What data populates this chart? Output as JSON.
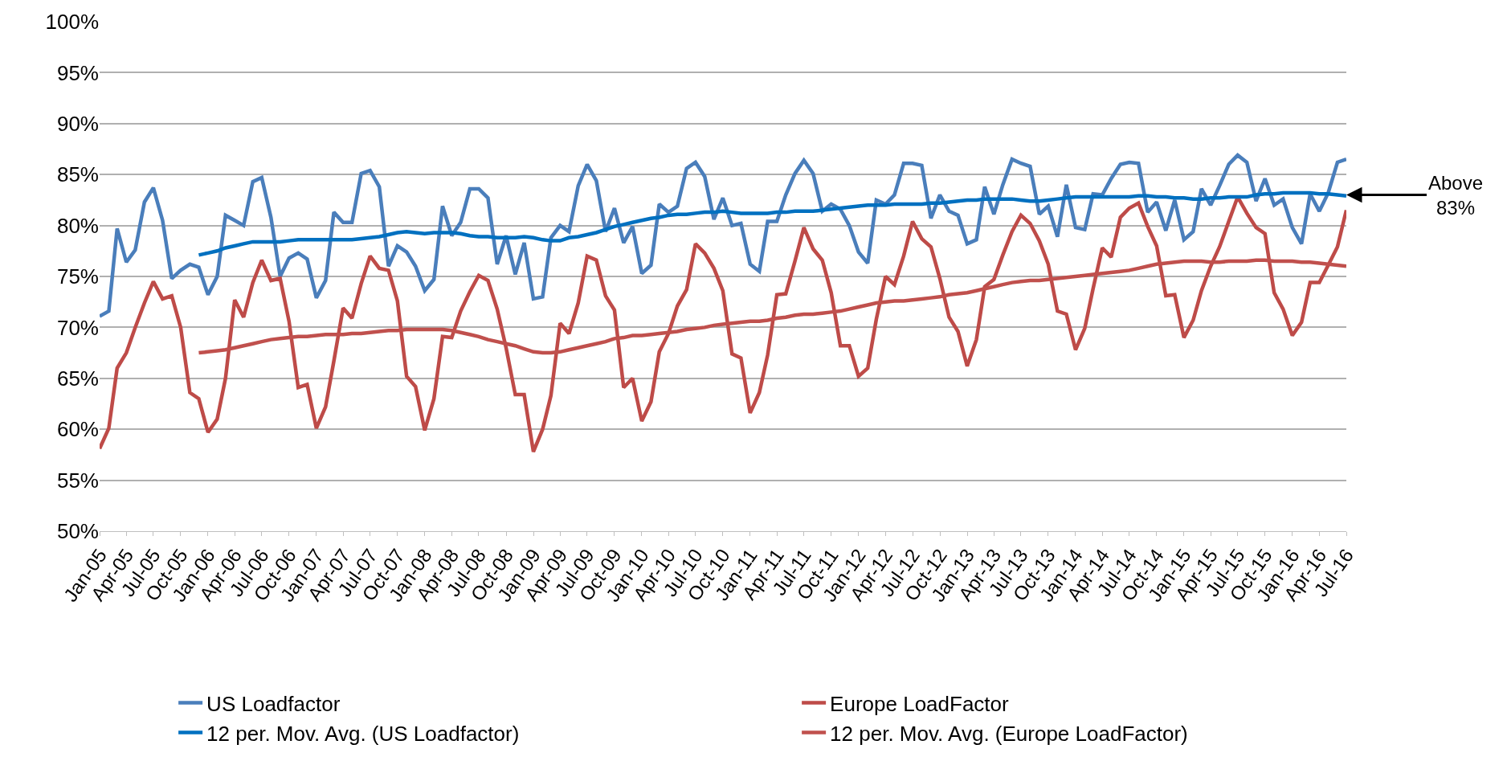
{
  "chart_data": {
    "type": "line",
    "x": [
      "2005-01",
      "2005-02",
      "2005-03",
      "2005-04",
      "2005-05",
      "2005-06",
      "2005-07",
      "2005-08",
      "2005-09",
      "2005-10",
      "2005-11",
      "2005-12",
      "2006-01",
      "2006-02",
      "2006-03",
      "2006-04",
      "2006-05",
      "2006-06",
      "2006-07",
      "2006-08",
      "2006-09",
      "2006-10",
      "2006-11",
      "2006-12",
      "2007-01",
      "2007-02",
      "2007-03",
      "2007-04",
      "2007-05",
      "2007-06",
      "2007-07",
      "2007-08",
      "2007-09",
      "2007-10",
      "2007-11",
      "2007-12",
      "2008-01",
      "2008-02",
      "2008-03",
      "2008-04",
      "2008-05",
      "2008-06",
      "2008-07",
      "2008-08",
      "2008-09",
      "2008-10",
      "2008-11",
      "2008-12",
      "2009-01",
      "2009-02",
      "2009-03",
      "2009-04",
      "2009-05",
      "2009-06",
      "2009-07",
      "2009-08",
      "2009-09",
      "2009-10",
      "2009-11",
      "2009-12",
      "2010-01",
      "2010-02",
      "2010-03",
      "2010-04",
      "2010-05",
      "2010-06",
      "2010-07",
      "2010-08",
      "2010-09",
      "2010-10",
      "2010-11",
      "2010-12",
      "2011-01",
      "2011-02",
      "2011-03",
      "2011-04",
      "2011-05",
      "2011-06",
      "2011-07",
      "2011-08",
      "2011-09",
      "2011-10",
      "2011-11",
      "2011-12",
      "2012-01",
      "2012-02",
      "2012-03",
      "2012-04",
      "2012-05",
      "2012-06",
      "2012-07",
      "2012-08",
      "2012-09",
      "2012-10",
      "2012-11",
      "2012-12",
      "2013-01",
      "2013-02",
      "2013-03",
      "2013-04",
      "2013-05",
      "2013-06",
      "2013-07",
      "2013-08",
      "2013-09",
      "2013-10",
      "2013-11",
      "2013-12",
      "2014-01",
      "2014-02",
      "2014-03",
      "2014-04",
      "2014-05",
      "2014-06",
      "2014-07",
      "2014-08",
      "2014-09",
      "2014-10",
      "2014-11",
      "2014-12",
      "2015-01",
      "2015-02",
      "2015-03",
      "2015-04",
      "2015-05",
      "2015-06",
      "2015-07",
      "2015-08",
      "2015-09",
      "2015-10",
      "2015-11",
      "2015-12",
      "2016-01",
      "2016-02",
      "2016-03",
      "2016-04",
      "2016-05",
      "2016-06",
      "2016-07"
    ],
    "series": [
      {
        "name": "US Loadfactor",
        "color": "#4a7ebb",
        "values": [
          71.1,
          71.6,
          79.7,
          76.4,
          77.6,
          82.3,
          83.7,
          80.5,
          74.8,
          75.6,
          76.2,
          75.9,
          73.2,
          75.0,
          81.0,
          80.5,
          80.0,
          84.3,
          84.7,
          80.8,
          75.0,
          76.8,
          77.3,
          76.7,
          72.9,
          74.6,
          81.3,
          80.3,
          80.3,
          85.1,
          85.4,
          83.8,
          76.0,
          78.0,
          77.4,
          76.0,
          73.6,
          74.7,
          81.9,
          79.0,
          80.3,
          83.6,
          83.6,
          82.7,
          76.2,
          79.0,
          75.2,
          78.3,
          72.8,
          73.0,
          78.8,
          80.0,
          79.4,
          83.9,
          86.0,
          84.4,
          79.4,
          81.7,
          78.3,
          79.9,
          75.3,
          76.1,
          82.1,
          81.3,
          81.9,
          85.6,
          86.2,
          84.8,
          80.6,
          82.7,
          80.0,
          80.2,
          76.2,
          75.5,
          80.4,
          80.4,
          83.0,
          85.1,
          86.4,
          85.1,
          81.4,
          82.1,
          81.6,
          80.0,
          77.4,
          76.3,
          82.5,
          82.1,
          83.0,
          86.1,
          86.1,
          85.9,
          80.7,
          83.0,
          81.4,
          81.0,
          78.2,
          78.6,
          83.8,
          81.1,
          84.0,
          86.5,
          86.1,
          85.8,
          81.1,
          81.9,
          78.9,
          84.0,
          79.8,
          79.6,
          83.1,
          83.0,
          84.6,
          86.0,
          86.2,
          86.1,
          81.3,
          82.3,
          79.5,
          82.5,
          78.6,
          79.4,
          83.6,
          82.0,
          83.9,
          86.0,
          86.9,
          86.2,
          82.4,
          84.6,
          82.0,
          82.6,
          79.8,
          78.2,
          83.1,
          81.4,
          83.2,
          86.2,
          86.5
        ]
      },
      {
        "name": "Europe LoadFactor",
        "color": "#be4b48",
        "values": [
          58.1,
          60.1,
          66.0,
          67.5,
          70.0,
          72.4,
          74.5,
          72.8,
          73.1,
          70.0,
          63.6,
          63.0,
          59.7,
          61.0,
          65.0,
          72.7,
          71.0,
          74.4,
          76.6,
          74.6,
          74.8,
          70.6,
          64.1,
          64.4,
          60.1,
          62.2,
          66.7,
          71.9,
          70.9,
          74.3,
          77.0,
          75.8,
          75.6,
          72.6,
          65.2,
          64.2,
          59.9,
          63.0,
          69.1,
          69.0,
          71.6,
          73.5,
          75.1,
          74.6,
          71.8,
          68.0,
          63.4,
          63.4,
          57.8,
          60.0,
          63.3,
          70.4,
          69.4,
          72.4,
          77.0,
          76.6,
          73.1,
          71.7,
          64.1,
          65.0,
          60.8,
          62.7,
          67.6,
          69.4,
          72.1,
          73.7,
          78.2,
          77.3,
          75.8,
          73.6,
          67.4,
          67.0,
          61.6,
          63.6,
          67.3,
          73.2,
          73.3,
          76.5,
          79.8,
          77.7,
          76.6,
          73.4,
          68.2,
          68.2,
          65.2,
          66.0,
          70.8,
          75.0,
          74.2,
          77.0,
          80.4,
          78.7,
          77.9,
          74.8,
          71.0,
          69.6,
          66.2,
          68.8,
          74.0,
          74.7,
          77.1,
          79.4,
          81.0,
          80.2,
          78.5,
          76.2,
          71.6,
          71.3,
          67.8,
          69.9,
          73.8,
          77.8,
          76.9,
          80.8,
          81.7,
          82.2,
          79.9,
          78.0,
          73.1,
          73.2,
          69.0,
          70.7,
          73.6,
          76.0,
          77.9,
          80.4,
          82.8,
          81.2,
          79.8,
          79.2,
          73.4,
          71.8,
          69.2,
          70.5,
          74.4,
          74.4,
          76.1,
          77.9,
          81.5
        ]
      },
      {
        "name": "12 per. Mov. Avg. (US Loadfactor)",
        "color": "#0070c0",
        "values": [
          null,
          null,
          null,
          null,
          null,
          null,
          null,
          null,
          null,
          null,
          null,
          77.1,
          77.3,
          77.5,
          77.8,
          78.0,
          78.2,
          78.4,
          78.4,
          78.4,
          78.4,
          78.5,
          78.6,
          78.6,
          78.6,
          78.6,
          78.6,
          78.6,
          78.6,
          78.7,
          78.8,
          78.9,
          79.1,
          79.3,
          79.4,
          79.3,
          79.2,
          79.3,
          79.3,
          79.3,
          79.2,
          79.0,
          78.9,
          78.9,
          78.8,
          78.8,
          78.8,
          78.9,
          78.8,
          78.6,
          78.5,
          78.5,
          78.8,
          78.9,
          79.1,
          79.3,
          79.6,
          79.9,
          80.1,
          80.3,
          80.5,
          80.7,
          80.8,
          81.0,
          81.1,
          81.1,
          81.2,
          81.3,
          81.3,
          81.4,
          81.3,
          81.2,
          81.2,
          81.2,
          81.2,
          81.3,
          81.3,
          81.4,
          81.4,
          81.4,
          81.5,
          81.6,
          81.7,
          81.8,
          81.9,
          82.0,
          82.0,
          82.0,
          82.1,
          82.1,
          82.1,
          82.1,
          82.2,
          82.2,
          82.3,
          82.4,
          82.5,
          82.5,
          82.6,
          82.6,
          82.6,
          82.6,
          82.5,
          82.4,
          82.4,
          82.5,
          82.6,
          82.7,
          82.8,
          82.8,
          82.8,
          82.8,
          82.8,
          82.8,
          82.8,
          82.9,
          82.9,
          82.8,
          82.8,
          82.7,
          82.7,
          82.6,
          82.6,
          82.7,
          82.7,
          82.8,
          82.8,
          82.8,
          83.0,
          83.1,
          83.1,
          83.2,
          83.2,
          83.2,
          83.2,
          83.1,
          83.1,
          83.0,
          82.9
        ]
      },
      {
        "name": "12 per. Mov. Avg. (Europe LoadFactor)",
        "color": "#c0504d",
        "values": [
          null,
          null,
          null,
          null,
          null,
          null,
          null,
          null,
          null,
          null,
          null,
          67.5,
          67.6,
          67.7,
          67.8,
          68.0,
          68.2,
          68.4,
          68.6,
          68.8,
          68.9,
          69.0,
          69.1,
          69.1,
          69.2,
          69.3,
          69.3,
          69.3,
          69.4,
          69.4,
          69.5,
          69.6,
          69.7,
          69.7,
          69.8,
          69.8,
          69.8,
          69.8,
          69.8,
          69.7,
          69.5,
          69.3,
          69.1,
          68.8,
          68.6,
          68.4,
          68.2,
          67.9,
          67.6,
          67.5,
          67.5,
          67.6,
          67.8,
          68.0,
          68.2,
          68.4,
          68.6,
          68.9,
          69.0,
          69.2,
          69.2,
          69.3,
          69.4,
          69.5,
          69.6,
          69.8,
          69.9,
          70.0,
          70.2,
          70.3,
          70.4,
          70.5,
          70.6,
          70.6,
          70.7,
          70.9,
          71.0,
          71.2,
          71.3,
          71.3,
          71.4,
          71.5,
          71.6,
          71.8,
          72.0,
          72.2,
          72.4,
          72.5,
          72.6,
          72.6,
          72.7,
          72.8,
          72.9,
          73.0,
          73.2,
          73.3,
          73.4,
          73.6,
          73.8,
          74.0,
          74.2,
          74.4,
          74.5,
          74.6,
          74.6,
          74.7,
          74.8,
          74.9,
          75.0,
          75.1,
          75.2,
          75.3,
          75.4,
          75.5,
          75.6,
          75.8,
          76.0,
          76.2,
          76.3,
          76.4,
          76.5,
          76.5,
          76.5,
          76.4,
          76.4,
          76.5,
          76.5,
          76.5,
          76.6,
          76.6,
          76.5,
          76.5,
          76.5,
          76.4,
          76.4,
          76.3,
          76.2,
          76.1,
          76.0
        ]
      }
    ],
    "xlim": [
      "2005-01",
      "2016-07"
    ],
    "xticks": [
      {
        "value": "2005-01",
        "label": "Jan-05"
      },
      {
        "value": "2005-04",
        "label": "Apr-05"
      },
      {
        "value": "2005-07",
        "label": "Jul-05"
      },
      {
        "value": "2005-10",
        "label": "Oct-05"
      },
      {
        "value": "2006-01",
        "label": "Jan-06"
      },
      {
        "value": "2006-04",
        "label": "Apr-06"
      },
      {
        "value": "2006-07",
        "label": "Jul-06"
      },
      {
        "value": "2006-10",
        "label": "Oct-06"
      },
      {
        "value": "2007-01",
        "label": "Jan-07"
      },
      {
        "value": "2007-04",
        "label": "Apr-07"
      },
      {
        "value": "2007-07",
        "label": "Jul-07"
      },
      {
        "value": "2007-10",
        "label": "Oct-07"
      },
      {
        "value": "2008-01",
        "label": "Jan-08"
      },
      {
        "value": "2008-04",
        "label": "Apr-08"
      },
      {
        "value": "2008-07",
        "label": "Jul-08"
      },
      {
        "value": "2008-10",
        "label": "Oct-08"
      },
      {
        "value": "2009-01",
        "label": "Jan-09"
      },
      {
        "value": "2009-04",
        "label": "Apr-09"
      },
      {
        "value": "2009-07",
        "label": "Jul-09"
      },
      {
        "value": "2009-10",
        "label": "Oct-09"
      },
      {
        "value": "2010-01",
        "label": "Jan-10"
      },
      {
        "value": "2010-04",
        "label": "Apr-10"
      },
      {
        "value": "2010-07",
        "label": "Jul-10"
      },
      {
        "value": "2010-10",
        "label": "Oct-10"
      },
      {
        "value": "2011-01",
        "label": "Jan-11"
      },
      {
        "value": "2011-04",
        "label": "Apr-11"
      },
      {
        "value": "2011-07",
        "label": "Jul-11"
      },
      {
        "value": "2011-10",
        "label": "Oct-11"
      },
      {
        "value": "2012-01",
        "label": "Jan-12"
      },
      {
        "value": "2012-04",
        "label": "Apr-12"
      },
      {
        "value": "2012-07",
        "label": "Jul-12"
      },
      {
        "value": "2012-10",
        "label": "Oct-12"
      },
      {
        "value": "2013-01",
        "label": "Jan-13"
      },
      {
        "value": "2013-04",
        "label": "Apr-13"
      },
      {
        "value": "2013-07",
        "label": "Jul-13"
      },
      {
        "value": "2013-10",
        "label": "Oct-13"
      },
      {
        "value": "2014-01",
        "label": "Jan-14"
      },
      {
        "value": "2014-04",
        "label": "Apr-14"
      },
      {
        "value": "2014-07",
        "label": "Jul-14"
      },
      {
        "value": "2014-10",
        "label": "Oct-14"
      },
      {
        "value": "2015-01",
        "label": "Jan-15"
      },
      {
        "value": "2015-04",
        "label": "Apr-15"
      },
      {
        "value": "2015-07",
        "label": "Jul-15"
      },
      {
        "value": "2015-10",
        "label": "Oct-15"
      },
      {
        "value": "2016-01",
        "label": "Jan-16"
      },
      {
        "value": "2016-04",
        "label": "Apr-16"
      },
      {
        "value": "2016-07",
        "label": "Jul-16"
      }
    ],
    "ylim": [
      50,
      100
    ],
    "yticks": [
      {
        "value": 50,
        "label": "50%"
      },
      {
        "value": 55,
        "label": "55%"
      },
      {
        "value": 60,
        "label": "60%"
      },
      {
        "value": 65,
        "label": "65%"
      },
      {
        "value": 70,
        "label": "70%"
      },
      {
        "value": 75,
        "label": "75%"
      },
      {
        "value": 80,
        "label": "80%"
      },
      {
        "value": 85,
        "label": "85%"
      },
      {
        "value": 90,
        "label": "90%"
      },
      {
        "value": 95,
        "label": "95%"
      },
      {
        "value": 100,
        "label": "100%"
      }
    ],
    "grid": "y",
    "legend": "bottom",
    "marker": "none",
    "line_style": "solid",
    "annotations": [
      {
        "text": "Above 83%",
        "x": "2016-07",
        "y": 83
      }
    ]
  }
}
